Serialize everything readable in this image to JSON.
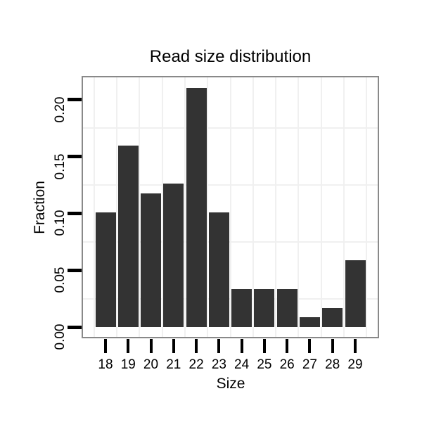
{
  "chart_data": {
    "type": "bar",
    "title": "Read size distribution",
    "xlabel": "Size",
    "ylabel": "Fraction",
    "categories": [
      "18",
      "19",
      "20",
      "21",
      "22",
      "23",
      "24",
      "25",
      "26",
      "27",
      "28",
      "29"
    ],
    "values": [
      0.1008,
      0.1597,
      0.1176,
      0.1261,
      0.2101,
      0.1008,
      0.0336,
      0.0336,
      0.0336,
      0.0084,
      0.0168,
      0.0588
    ],
    "y_ticks": [
      {
        "label": "0.00",
        "value": 0.0
      },
      {
        "label": "0.05",
        "value": 0.05
      },
      {
        "label": "0.10",
        "value": 0.1
      },
      {
        "label": "0.15",
        "value": 0.15
      },
      {
        "label": "0.20",
        "value": 0.2
      }
    ],
    "ylim": [
      -0.0105,
      0.2205
    ],
    "minor_gridlines_y": [
      0.025,
      0.075,
      0.125,
      0.175
    ],
    "legend": "none",
    "grid": "minor-only",
    "bar_color": "#333333",
    "grid_color": "#f0f0f0",
    "panel_border_color": "#898989",
    "tick_color": "#000000",
    "text_color": "#000000"
  }
}
